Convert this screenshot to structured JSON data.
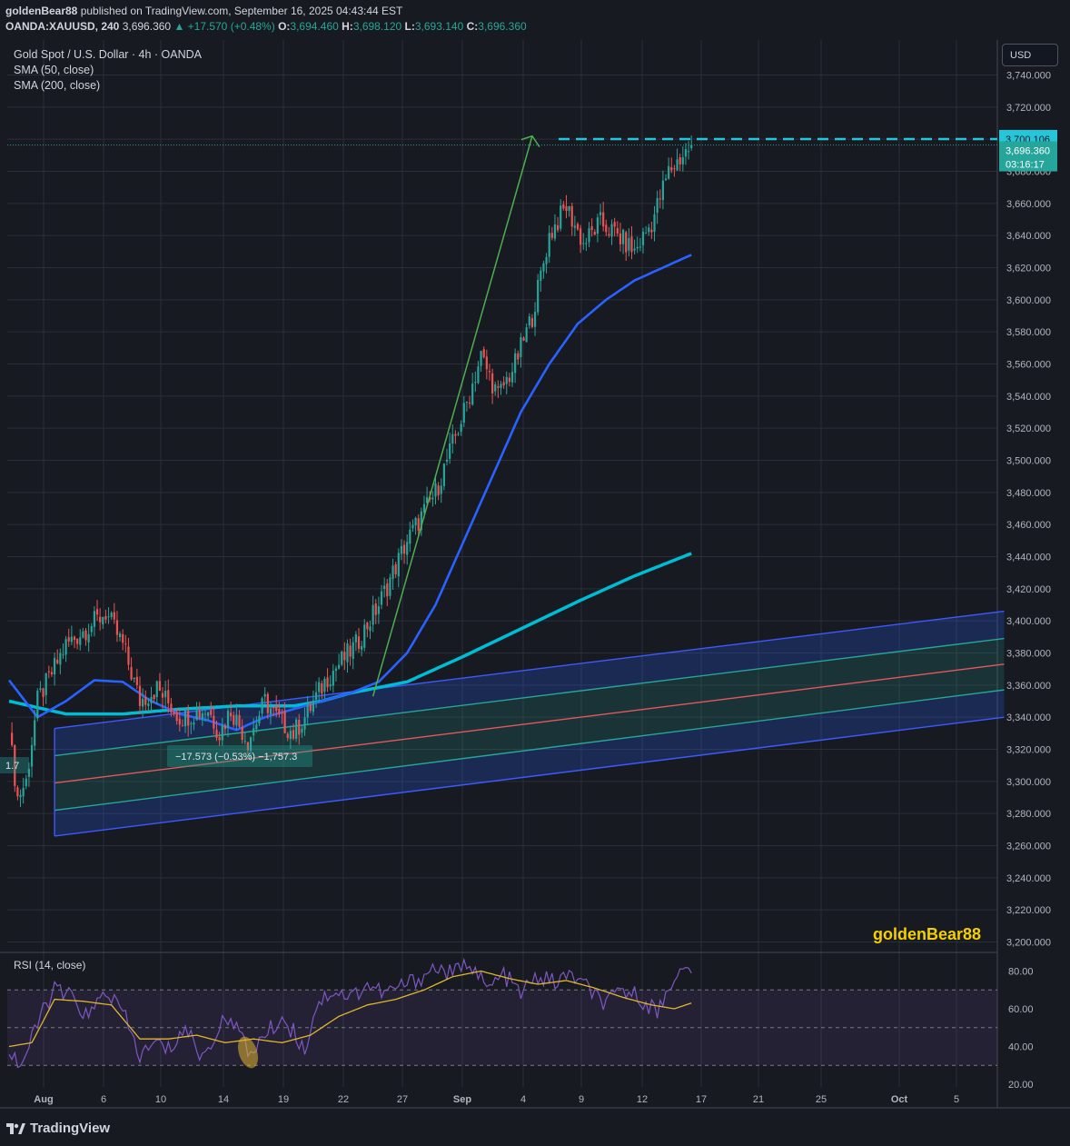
{
  "header": {
    "author": "goldenBear88",
    "published_text": "published on TradingView.com, September 16, 2025 04:43:44 EST",
    "symbol": "OANDA:XAUUSD, 240",
    "last": "3,696.360",
    "change": "▲ +17.570 (+0.48%)",
    "o_label": "O:",
    "o_value": "3,694.460",
    "h_label": "H:",
    "h_value": "3,698.120",
    "l_label": "L:",
    "l_value": "3,693.140",
    "c_label": "C:",
    "c_value": "3,696.360"
  },
  "legend": {
    "title": "Gold Spot / U.S. Dollar · 4h · OANDA",
    "sma50": "SMA (50, close)",
    "sma200": "SMA (200, close)",
    "rsi": "RSI (14, close)"
  },
  "currency_button": "USD",
  "watermark": "goldenBear88",
  "footer": {
    "logo": "TradingView"
  },
  "colors": {
    "background": "#181a22",
    "up": "#26a69a",
    "down": "#ef5350",
    "sma50": "#2962ff",
    "sma200": "#00bcd4",
    "channel_border": "#3d5afe",
    "channel_mid": "#e05a5a",
    "arrow": "#4caf50",
    "target": "#26c6da",
    "rsi": "#7e57c2",
    "rsi_ma": "#e0b62e"
  },
  "chart_data": {
    "type": "candlestick",
    "title": "Gold Spot / U.S. Dollar · 4h · OANDA",
    "ylim": [
      3200,
      3745
    ],
    "yticks": [
      "3,740.000",
      "3,720.000",
      "3,700.000",
      "3,680.000",
      "3,660.000",
      "3,640.000",
      "3,620.000",
      "3,600.000",
      "3,580.000",
      "3,560.000",
      "3,540.000",
      "3,520.000",
      "3,500.000",
      "3,480.000",
      "3,460.000",
      "3,440.000",
      "3,420.000",
      "3,400.000",
      "3,380.000",
      "3,360.000",
      "3,340.000",
      "3,320.000",
      "3,300.000",
      "3,280.000",
      "3,260.000",
      "3,240.000",
      "3,220.000",
      "3,200.000"
    ],
    "xticks": [
      "Aug",
      "6",
      "10",
      "14",
      "19",
      "22",
      "27",
      "Sep",
      "4",
      "9",
      "12",
      "17",
      "21",
      "25",
      "Oct",
      "5"
    ],
    "price_tags": {
      "target": "3,700.106",
      "last": "3,696.360",
      "countdown": "03:16:17"
    },
    "measure_label": "−17.573 (−0.53%) −1,757.3",
    "left_cut_label": "1.7",
    "price_anchors": [
      [
        0,
        3330
      ],
      [
        3,
        3290
      ],
      [
        6,
        3300
      ],
      [
        10,
        3350
      ],
      [
        20,
        3385
      ],
      [
        34,
        3405
      ],
      [
        40,
        3385
      ],
      [
        46,
        3350
      ],
      [
        52,
        3358
      ],
      [
        60,
        3340
      ],
      [
        70,
        3345
      ],
      [
        74,
        3330
      ],
      [
        78,
        3345
      ],
      [
        84,
        3325
      ],
      [
        90,
        3350
      ],
      [
        94,
        3340
      ],
      [
        100,
        3330
      ],
      [
        104,
        3340
      ],
      [
        112,
        3365
      ],
      [
        122,
        3385
      ],
      [
        130,
        3410
      ],
      [
        140,
        3450
      ],
      [
        150,
        3480
      ],
      [
        160,
        3530
      ],
      [
        166,
        3565
      ],
      [
        172,
        3540
      ],
      [
        178,
        3560
      ],
      [
        184,
        3590
      ],
      [
        190,
        3640
      ],
      [
        196,
        3658
      ],
      [
        202,
        3635
      ],
      [
        208,
        3648
      ],
      [
        214,
        3640
      ],
      [
        220,
        3630
      ],
      [
        226,
        3648
      ],
      [
        232,
        3680
      ],
      [
        240,
        3696
      ]
    ],
    "sma50_anchors": [
      [
        0,
        3363
      ],
      [
        10,
        3340
      ],
      [
        20,
        3350
      ],
      [
        30,
        3363
      ],
      [
        40,
        3362
      ],
      [
        50,
        3350
      ],
      [
        60,
        3342
      ],
      [
        70,
        3338
      ],
      [
        80,
        3332
      ],
      [
        90,
        3340
      ],
      [
        100,
        3345
      ],
      [
        110,
        3350
      ],
      [
        120,
        3355
      ],
      [
        130,
        3362
      ],
      [
        140,
        3380
      ],
      [
        150,
        3410
      ],
      [
        160,
        3450
      ],
      [
        170,
        3490
      ],
      [
        180,
        3530
      ],
      [
        190,
        3560
      ],
      [
        200,
        3585
      ],
      [
        210,
        3600
      ],
      [
        220,
        3612
      ],
      [
        230,
        3620
      ],
      [
        240,
        3628
      ]
    ],
    "sma200_anchors": [
      [
        0,
        3350
      ],
      [
        20,
        3342
      ],
      [
        40,
        3342
      ],
      [
        60,
        3345
      ],
      [
        80,
        3347
      ],
      [
        100,
        3347
      ],
      [
        110,
        3350
      ],
      [
        120,
        3355
      ],
      [
        140,
        3362
      ],
      [
        160,
        3378
      ],
      [
        180,
        3395
      ],
      [
        200,
        3412
      ],
      [
        220,
        3428
      ],
      [
        240,
        3442
      ]
    ],
    "channel": {
      "start_index": 16,
      "end_index": 350,
      "upper": [
        3333,
        3406
      ],
      "upper_mid": [
        3316,
        3389
      ],
      "mid": [
        3299,
        3373
      ],
      "lower_mid": [
        3282,
        3357
      ],
      "lower": [
        3266,
        3340
      ]
    },
    "arrow": {
      "from": [
        128,
        3353
      ],
      "to": [
        184,
        3702
      ]
    },
    "target_price": 3700.106,
    "rsi": {
      "ylim": [
        20,
        85
      ],
      "ticks": [
        "80.00",
        "60.00",
        "40.00",
        "20.00"
      ],
      "upper_band": 70,
      "lower_band": 30,
      "mid_line": 50,
      "anchors": [
        [
          0,
          38
        ],
        [
          4,
          30
        ],
        [
          8,
          43
        ],
        [
          12,
          60
        ],
        [
          16,
          70
        ],
        [
          22,
          66
        ],
        [
          28,
          55
        ],
        [
          34,
          70
        ],
        [
          40,
          58
        ],
        [
          46,
          35
        ],
        [
          52,
          42
        ],
        [
          56,
          38
        ],
        [
          62,
          50
        ],
        [
          68,
          34
        ],
        [
          72,
          45
        ],
        [
          78,
          58
        ],
        [
          84,
          36
        ],
        [
          90,
          46
        ],
        [
          96,
          55
        ],
        [
          100,
          48
        ],
        [
          104,
          38
        ],
        [
          108,
          62
        ],
        [
          114,
          70
        ],
        [
          120,
          66
        ],
        [
          126,
          73
        ],
        [
          132,
          68
        ],
        [
          138,
          72
        ],
        [
          144,
          76
        ],
        [
          150,
          82
        ],
        [
          156,
          78
        ],
        [
          162,
          86
        ],
        [
          168,
          70
        ],
        [
          174,
          78
        ],
        [
          180,
          68
        ],
        [
          186,
          77
        ],
        [
          192,
          74
        ],
        [
          198,
          78
        ],
        [
          204,
          70
        ],
        [
          210,
          62
        ],
        [
          216,
          70
        ],
        [
          222,
          66
        ],
        [
          228,
          58
        ],
        [
          234,
          78
        ],
        [
          240,
          80
        ]
      ],
      "ma_anchors": [
        [
          0,
          40
        ],
        [
          8,
          42
        ],
        [
          16,
          65
        ],
        [
          26,
          64
        ],
        [
          36,
          62
        ],
        [
          46,
          44
        ],
        [
          56,
          44
        ],
        [
          66,
          46
        ],
        [
          76,
          42
        ],
        [
          86,
          44
        ],
        [
          96,
          42
        ],
        [
          106,
          46
        ],
        [
          116,
          56
        ],
        [
          126,
          62
        ],
        [
          136,
          65
        ],
        [
          146,
          70
        ],
        [
          156,
          77
        ],
        [
          166,
          80
        ],
        [
          176,
          76
        ],
        [
          186,
          73
        ],
        [
          196,
          75
        ],
        [
          206,
          71
        ],
        [
          216,
          66
        ],
        [
          226,
          62
        ],
        [
          234,
          60
        ],
        [
          240,
          63
        ]
      ]
    }
  }
}
